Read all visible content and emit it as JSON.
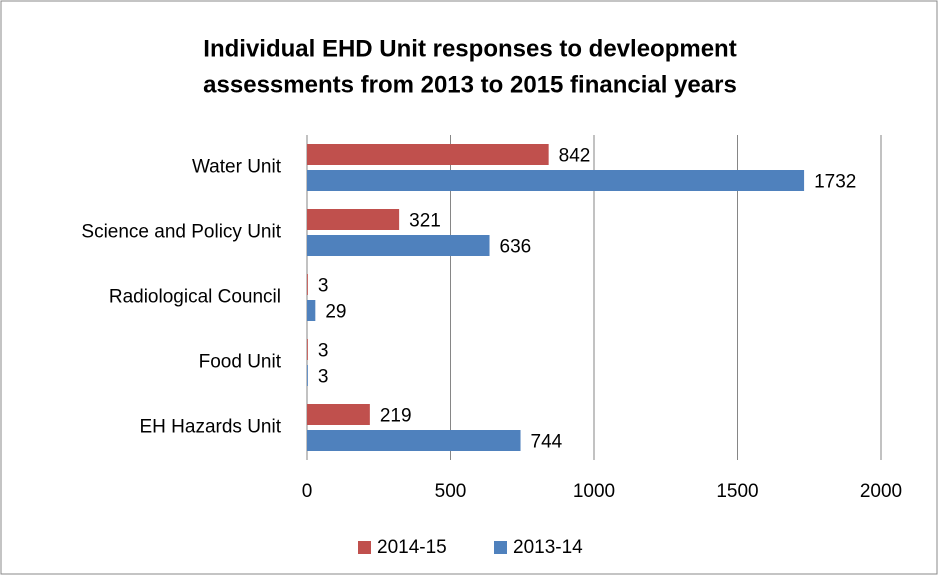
{
  "chart_data": {
    "type": "bar",
    "orientation": "horizontal",
    "title": [
      "Individual EHD Unit responses to devleopment",
      "assessments from 2013 to 2015 financial years"
    ],
    "categories": [
      "Water Unit",
      "Science and Policy Unit",
      "Radiological Council",
      "Food Unit",
      "EH Hazards Unit"
    ],
    "series": [
      {
        "name": "2014-15",
        "color": "#c0504d",
        "values": [
          842,
          321,
          3,
          3,
          219
        ]
      },
      {
        "name": "2013-14",
        "color": "#4f81bd",
        "values": [
          1732,
          636,
          29,
          3,
          744
        ]
      }
    ],
    "xlim": [
      0,
      2000
    ],
    "xticks": [
      0,
      500,
      1000,
      1500,
      2000
    ],
    "grid": true,
    "legend": "bottom"
  }
}
